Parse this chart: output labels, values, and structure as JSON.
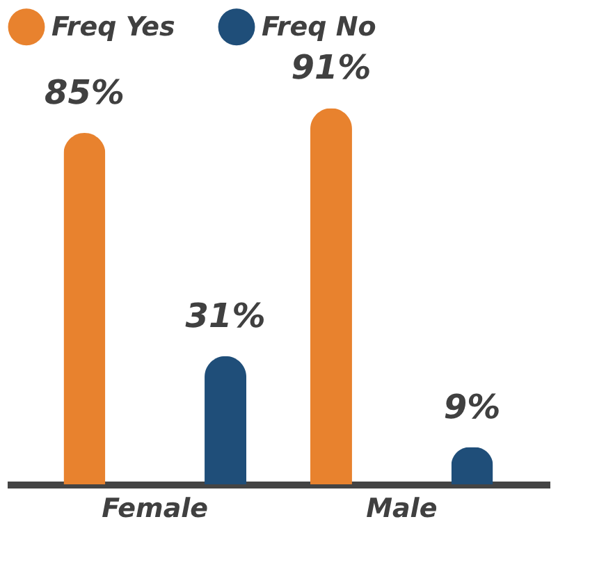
{
  "chart_data": {
    "type": "bar",
    "categories": [
      "Female",
      "Male"
    ],
    "series": [
      {
        "name": "Freq Yes",
        "color": "#e8822e",
        "values": [
          85,
          91
        ],
        "value_labels": [
          "85%",
          "91%"
        ]
      },
      {
        "name": "Freq No",
        "color": "#1f4e79",
        "values": [
          31,
          9
        ],
        "value_labels": [
          "31%",
          "9%"
        ]
      }
    ],
    "legend": "top",
    "grid": false,
    "tick_labels": "x"
  }
}
